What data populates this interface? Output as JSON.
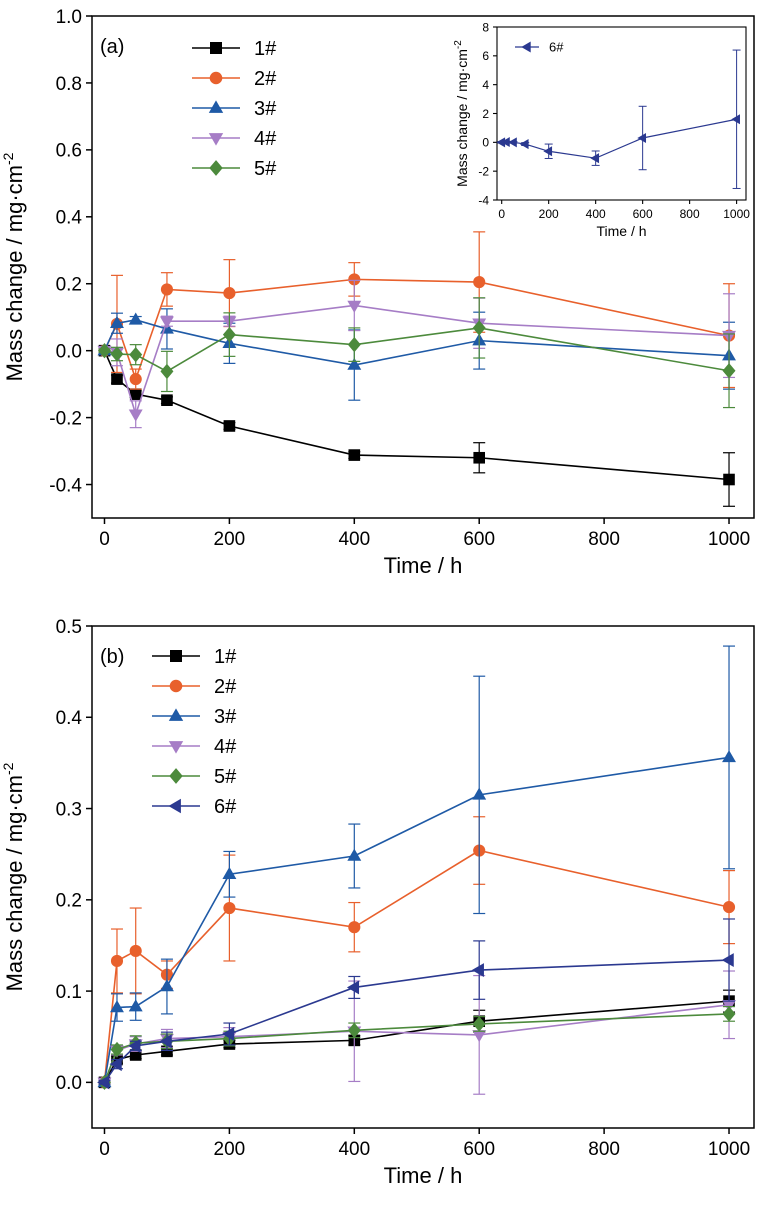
{
  "chart_data": [
    {
      "id": "a",
      "type": "line",
      "panel_label": "(a)",
      "xlabel": "Time / h",
      "ylabel": "Mass change / mg·cm",
      "ylabel_sup": "-2",
      "xlim": [
        -20,
        1040
      ],
      "ylim": [
        -0.5,
        1.0
      ],
      "xticks": [
        0,
        200,
        400,
        600,
        800,
        1000
      ],
      "yticks": [
        -0.4,
        -0.2,
        0.0,
        0.2,
        0.4,
        0.6,
        0.8,
        1.0
      ],
      "ytick_labels": [
        "-0.4",
        "-0.2",
        "0.0",
        "0.2",
        "0.4",
        "0.6",
        "0.8",
        "1.0"
      ],
      "legend_position": "top-left",
      "x": [
        0,
        20,
        50,
        100,
        200,
        400,
        600,
        1000
      ],
      "series": [
        {
          "name": "1#",
          "color": "#000000",
          "marker": "square",
          "values": [
            0.0,
            -0.085,
            -0.13,
            -0.148,
            -0.225,
            -0.312,
            -0.32,
            -0.385
          ],
          "errors": [
            0.005,
            0.012,
            0.01,
            0.01,
            0.01,
            0.01,
            0.045,
            0.08
          ]
        },
        {
          "name": "2#",
          "color": "#E8602C",
          "marker": "circle",
          "values": [
            0.0,
            0.08,
            -0.085,
            0.183,
            0.172,
            0.213,
            0.205,
            0.045
          ],
          "errors": [
            0.005,
            0.145,
            0.03,
            0.05,
            0.1,
            0.05,
            0.15,
            0.155
          ]
        },
        {
          "name": "3#",
          "color": "#1F5AA6",
          "marker": "triangle-up",
          "values": [
            0.0,
            0.082,
            0.092,
            0.065,
            0.022,
            -0.043,
            0.03,
            -0.015
          ],
          "errors": [
            0.005,
            0.03,
            0.01,
            0.06,
            0.06,
            0.105,
            0.085,
            0.1
          ]
        },
        {
          "name": "4#",
          "color": "#A67DC6",
          "marker": "triangle-down",
          "values": [
            0.0,
            -0.005,
            -0.19,
            0.088,
            0.088,
            0.135,
            0.082,
            0.045
          ],
          "errors": [
            0.005,
            0.04,
            0.04,
            0.015,
            0.015,
            0.075,
            0.075,
            0.125
          ]
        },
        {
          "name": "5#",
          "color": "#4C8A3C",
          "marker": "diamond",
          "values": [
            0.0,
            -0.01,
            -0.012,
            -0.062,
            0.048,
            0.018,
            0.068,
            -0.06
          ],
          "errors": [
            0.005,
            0.02,
            0.03,
            0.06,
            0.065,
            0.05,
            0.09,
            0.11
          ]
        }
      ],
      "inset": {
        "type": "line",
        "xlabel": "Time / h",
        "ylabel": "Mass change / mg·cm",
        "ylabel_sup": "-2",
        "xlim": [
          -20,
          1040
        ],
        "ylim": [
          -4,
          8
        ],
        "xticks": [
          0,
          200,
          400,
          600,
          800,
          1000
        ],
        "yticks": [
          -4,
          -2,
          0,
          2,
          4,
          6,
          8
        ],
        "x": [
          0,
          20,
          50,
          100,
          200,
          400,
          600,
          1000
        ],
        "series": [
          {
            "name": "6#",
            "color": "#2B3990",
            "marker": "triangle-left",
            "values": [
              0.0,
              0.02,
              0.0,
              -0.12,
              -0.62,
              -1.1,
              0.3,
              1.6
            ],
            "errors": [
              0.05,
              0.05,
              0.05,
              0.1,
              0.5,
              0.5,
              2.2,
              4.8
            ]
          }
        ]
      }
    },
    {
      "id": "b",
      "type": "line",
      "panel_label": "(b)",
      "xlabel": "Time / h",
      "ylabel": "Mass change / mg·cm",
      "ylabel_sup": "-2",
      "xlim": [
        -20,
        1040
      ],
      "ylim": [
        -0.05,
        0.5
      ],
      "xticks": [
        0,
        200,
        400,
        600,
        800,
        1000
      ],
      "yticks": [
        0.0,
        0.1,
        0.2,
        0.3,
        0.4,
        0.5
      ],
      "ytick_labels": [
        "0.0",
        "0.1",
        "0.2",
        "0.3",
        "0.4",
        "0.5"
      ],
      "legend_position": "top-left",
      "x": [
        0,
        20,
        50,
        100,
        200,
        400,
        600,
        1000
      ],
      "series": [
        {
          "name": "1#",
          "color": "#000000",
          "marker": "square",
          "values": [
            0.0,
            0.025,
            0.03,
            0.034,
            0.042,
            0.046,
            0.067,
            0.089
          ],
          "errors": [
            0.002,
            0.004,
            0.004,
            0.004,
            0.004,
            0.005,
            0.012,
            0.012
          ]
        },
        {
          "name": "2#",
          "color": "#E8602C",
          "marker": "circle",
          "values": [
            0.0,
            0.133,
            0.144,
            0.118,
            0.191,
            0.17,
            0.254,
            0.192
          ],
          "errors": [
            0.002,
            0.035,
            0.047,
            0.015,
            0.058,
            0.027,
            0.037,
            0.04
          ]
        },
        {
          "name": "3#",
          "color": "#1F5AA6",
          "marker": "triangle-up",
          "values": [
            0.0,
            0.082,
            0.083,
            0.105,
            0.228,
            0.248,
            0.315,
            0.356
          ],
          "errors": [
            0.002,
            0.015,
            0.015,
            0.03,
            0.025,
            0.035,
            0.13,
            0.122
          ]
        },
        {
          "name": "4#",
          "color": "#A67DC6",
          "marker": "triangle-down",
          "values": [
            0.0,
            0.035,
            0.042,
            0.048,
            0.05,
            0.056,
            0.052,
            0.085
          ],
          "errors": [
            0.002,
            0.005,
            0.008,
            0.01,
            0.01,
            0.055,
            0.065,
            0.037
          ]
        },
        {
          "name": "5#",
          "color": "#4C8A3C",
          "marker": "diamond",
          "values": [
            0.0,
            0.036,
            0.043,
            0.045,
            0.048,
            0.057,
            0.064,
            0.075
          ],
          "errors": [
            0.002,
            0.005,
            0.008,
            0.008,
            0.008,
            0.008,
            0.008,
            0.008
          ]
        },
        {
          "name": "6#",
          "color": "#2B3990",
          "marker": "triangle-left",
          "values": [
            0.0,
            0.02,
            0.04,
            0.045,
            0.053,
            0.104,
            0.123,
            0.134
          ],
          "errors": [
            0.002,
            0.005,
            0.005,
            0.01,
            0.012,
            0.012,
            0.032,
            0.045
          ]
        }
      ]
    }
  ]
}
